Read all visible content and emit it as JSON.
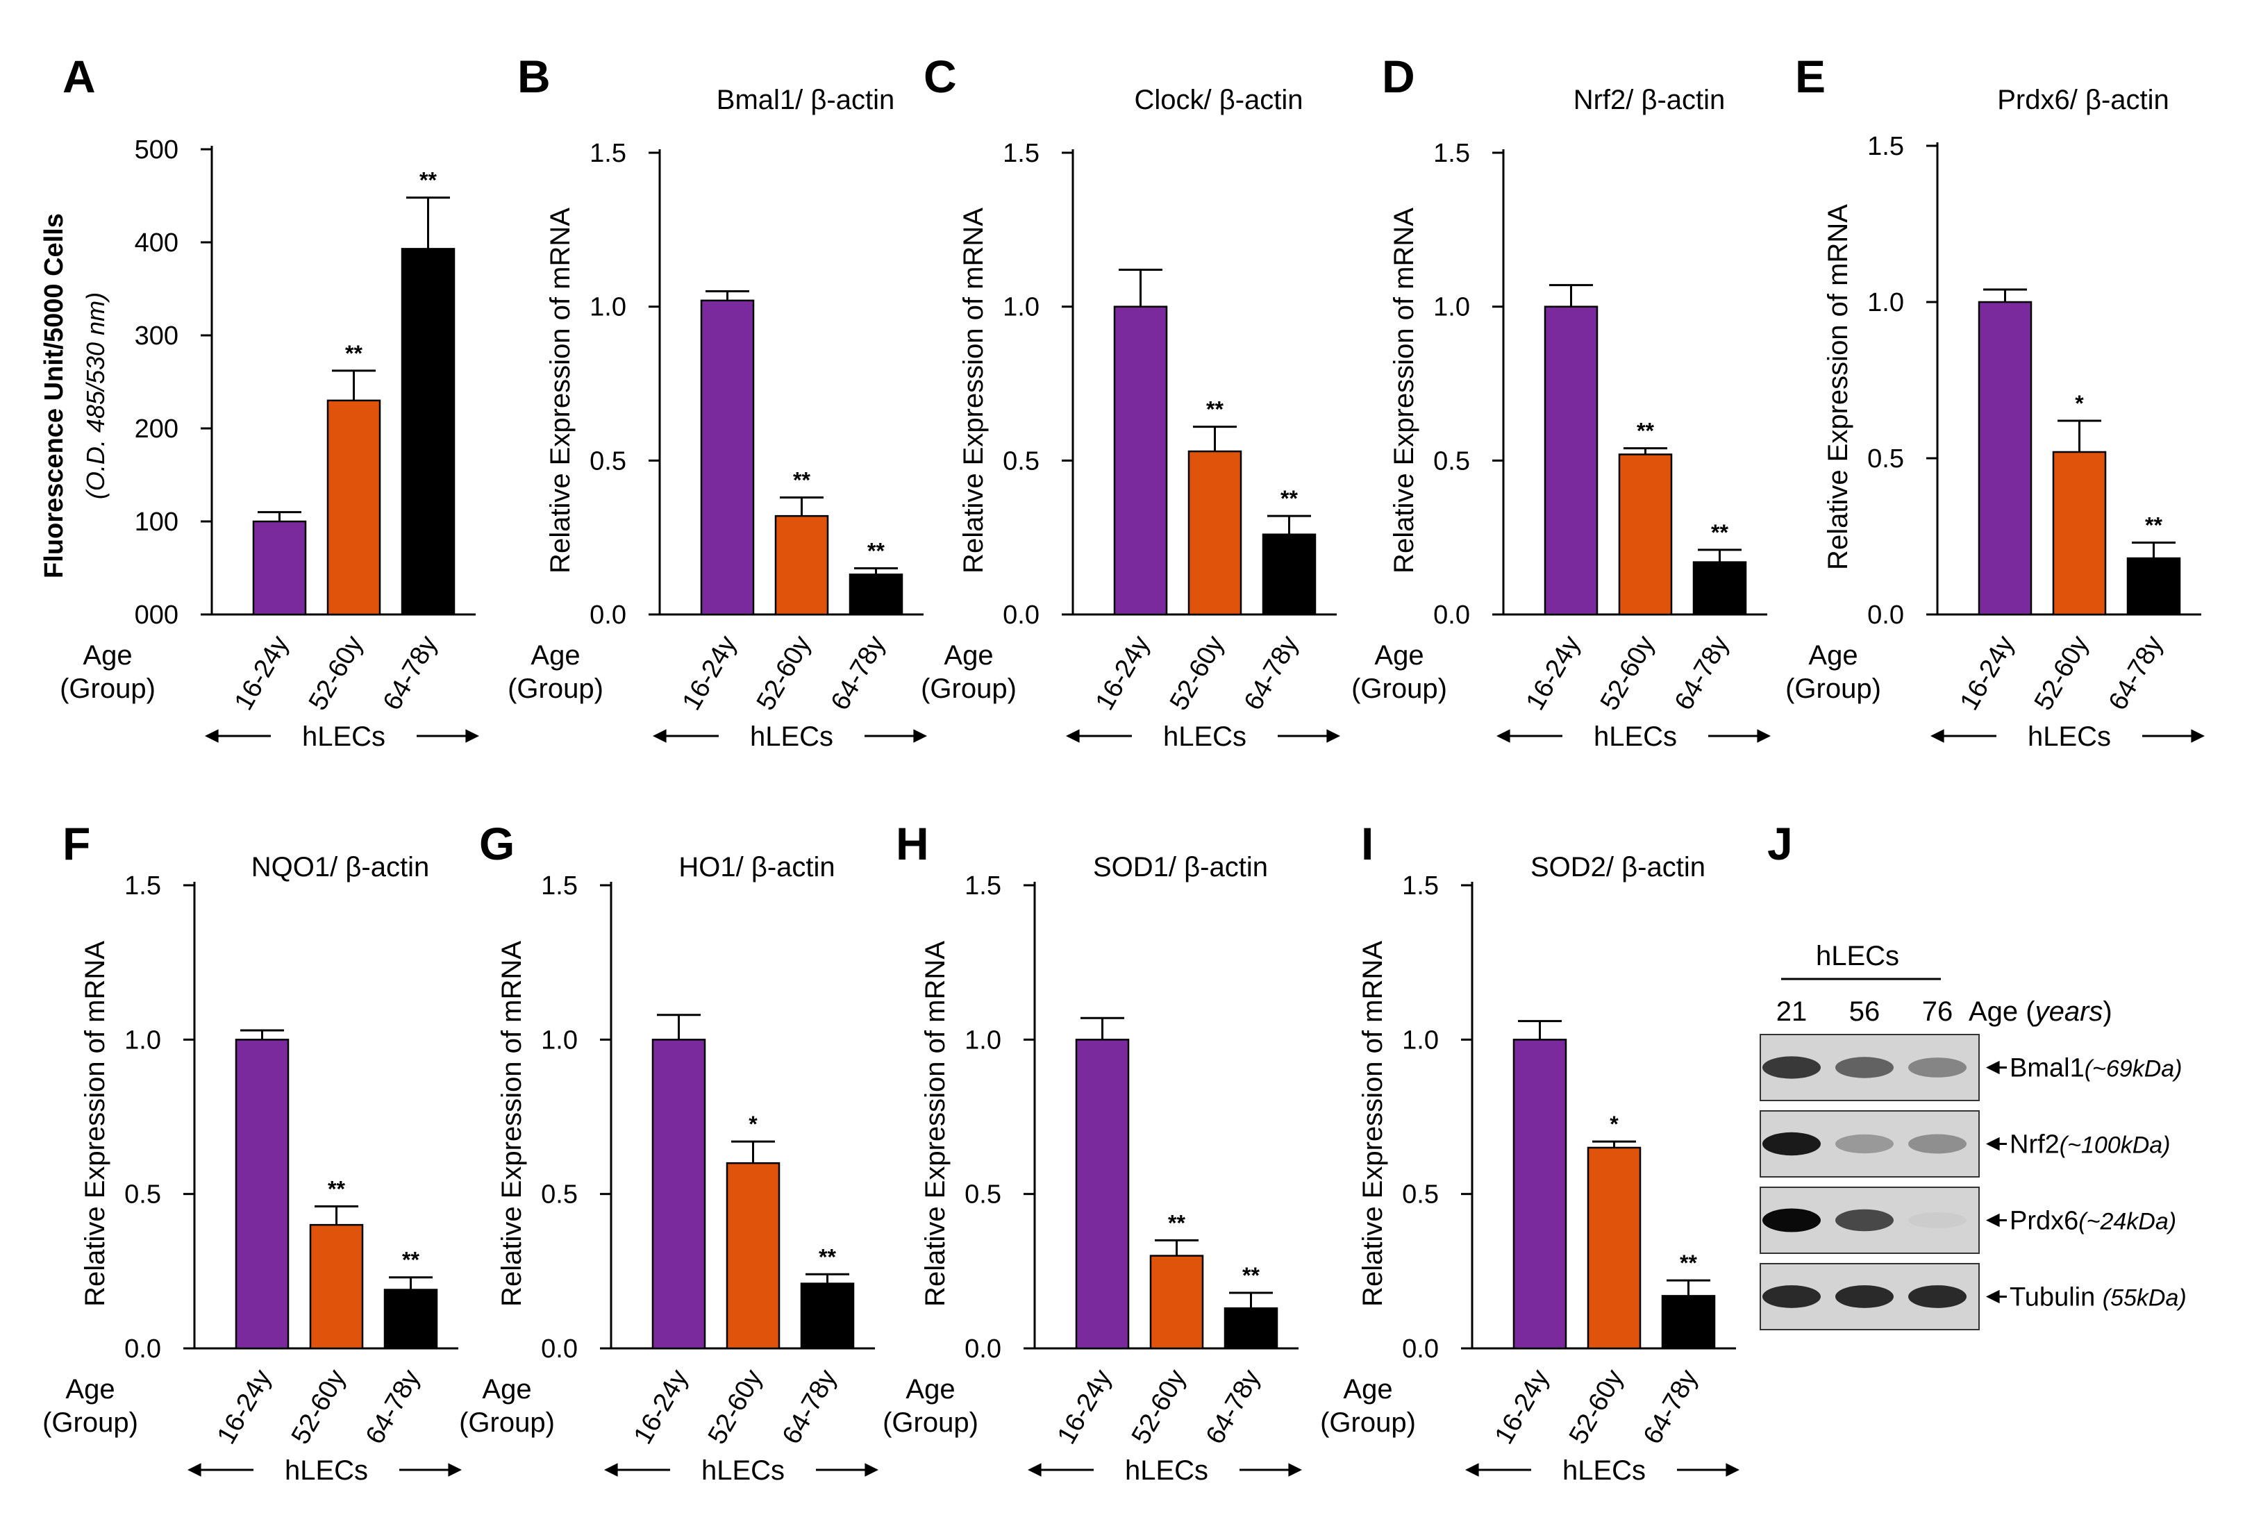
{
  "colors": {
    "purple": "#7a2a9c",
    "orange": "#e0530b",
    "black": "#000000",
    "axis": "#000000"
  },
  "shared": {
    "age_label": "Age",
    "group_label": "(Group)",
    "cell_label": "hLECs",
    "ylabel_mrna": "Relative Expression of mRNA"
  },
  "chart_data": [
    {
      "panel": "A",
      "type": "bar",
      "title": "",
      "ylabel": "Fluorescence Unit/5000 Cells",
      "ylabel2": "(O.D. 485/530 nm)",
      "categories": [
        "16-24y",
        "52-60y",
        "64-78y"
      ],
      "values": [
        100,
        230,
        393
      ],
      "errors": [
        10,
        32,
        55
      ],
      "significance": [
        "",
        "**",
        "**"
      ],
      "ylim": [
        0,
        500
      ],
      "ticks": [
        0,
        100,
        200,
        300,
        400,
        500
      ],
      "tick_labels": [
        "000",
        "100",
        "200",
        "300",
        "400",
        "500"
      ]
    },
    {
      "panel": "B",
      "type": "bar",
      "title": "Bmal1/ β-actin",
      "categories": [
        "16-24y",
        "52-60y",
        "64-78y"
      ],
      "values": [
        1.02,
        0.32,
        0.13
      ],
      "errors": [
        0.03,
        0.06,
        0.02
      ],
      "significance": [
        "",
        "**",
        "**"
      ],
      "ylim": [
        0,
        1.5
      ],
      "ticks": [
        0,
        0.5,
        1.0,
        1.5
      ],
      "tick_labels": [
        "0.0",
        "0.5",
        "1.0",
        "1.5"
      ]
    },
    {
      "panel": "C",
      "type": "bar",
      "title": "Clock/ β-actin",
      "categories": [
        "16-24y",
        "52-60y",
        "64-78y"
      ],
      "values": [
        1.0,
        0.53,
        0.26
      ],
      "errors": [
        0.12,
        0.08,
        0.06
      ],
      "significance": [
        "",
        "**",
        "**"
      ],
      "ylim": [
        0,
        1.5
      ],
      "ticks": [
        0,
        0.5,
        1.0,
        1.5
      ],
      "tick_labels": [
        "0.0",
        "0.5",
        "1.0",
        "1.5"
      ]
    },
    {
      "panel": "D",
      "type": "bar",
      "title": "Nrf2/ β-actin",
      "categories": [
        "16-24y",
        "52-60y",
        "64-78y"
      ],
      "values": [
        1.0,
        0.52,
        0.17
      ],
      "errors": [
        0.07,
        0.02,
        0.04
      ],
      "significance": [
        "",
        "**",
        "**"
      ],
      "ylim": [
        0,
        1.5
      ],
      "ticks": [
        0,
        0.5,
        1.0,
        1.5
      ],
      "tick_labels": [
        "0.0",
        "0.5",
        "1.0",
        "1.5"
      ]
    },
    {
      "panel": "E",
      "type": "bar",
      "title": "Prdx6/ β-actin",
      "categories": [
        "16-24y",
        "52-60y",
        "64-78y"
      ],
      "values": [
        1.0,
        0.52,
        0.18
      ],
      "errors": [
        0.04,
        0.1,
        0.05
      ],
      "significance": [
        "",
        "*",
        "**"
      ],
      "ylim": [
        0,
        1.5
      ],
      "ticks": [
        0,
        0.5,
        1.0,
        1.5
      ],
      "tick_labels": [
        "0.0",
        "0.5",
        "1.0",
        "1.5"
      ]
    },
    {
      "panel": "F",
      "type": "bar",
      "title": "NQO1/ β-actin",
      "categories": [
        "16-24y",
        "52-60y",
        "64-78y"
      ],
      "values": [
        1.0,
        0.4,
        0.19
      ],
      "errors": [
        0.03,
        0.06,
        0.04
      ],
      "significance": [
        "",
        "**",
        "**"
      ],
      "ylim": [
        0,
        1.5
      ],
      "ticks": [
        0,
        0.5,
        1.0,
        1.5
      ],
      "tick_labels": [
        "0.0",
        "0.5",
        "1.0",
        "1.5"
      ]
    },
    {
      "panel": "G",
      "type": "bar",
      "title": "HO1/ β-actin",
      "categories": [
        "16-24y",
        "52-60y",
        "64-78y"
      ],
      "values": [
        1.0,
        0.6,
        0.21
      ],
      "errors": [
        0.08,
        0.07,
        0.03
      ],
      "significance": [
        "",
        "*",
        "**"
      ],
      "ylim": [
        0,
        1.5
      ],
      "ticks": [
        0,
        0.5,
        1.0,
        1.5
      ],
      "tick_labels": [
        "0.0",
        "0.5",
        "1.0",
        "1.5"
      ]
    },
    {
      "panel": "H",
      "type": "bar",
      "title": "SOD1/ β-actin",
      "categories": [
        "16-24y",
        "52-60y",
        "64-78y"
      ],
      "values": [
        1.0,
        0.3,
        0.13
      ],
      "errors": [
        0.07,
        0.05,
        0.05
      ],
      "significance": [
        "",
        "**",
        "**"
      ],
      "ylim": [
        0,
        1.5
      ],
      "ticks": [
        0,
        0.5,
        1.0,
        1.5
      ],
      "tick_labels": [
        "0.0",
        "0.5",
        "1.0",
        "1.5"
      ]
    },
    {
      "panel": "I",
      "type": "bar",
      "title": "SOD2/ β-actin",
      "categories": [
        "16-24y",
        "52-60y",
        "64-78y"
      ],
      "values": [
        1.0,
        0.65,
        0.17
      ],
      "errors": [
        0.06,
        0.02,
        0.05
      ],
      "significance": [
        "",
        "*",
        "**"
      ],
      "ylim": [
        0,
        1.5
      ],
      "ticks": [
        0,
        0.5,
        1.0,
        1.5
      ],
      "tick_labels": [
        "0.0",
        "0.5",
        "1.0",
        "1.5"
      ]
    }
  ],
  "blot": {
    "panel": "J",
    "header": "hLECs",
    "ages": [
      "21",
      "56",
      "76"
    ],
    "age_label": "Age (",
    "age_unit": "years",
    "age_close": ")",
    "rows": [
      {
        "name": "Bmal1",
        "size": "(~69kDa)",
        "intensity": [
          0.85,
          0.7,
          0.55
        ]
      },
      {
        "name": "Nrf2",
        "size": "(~100kDa)",
        "intensity": [
          0.95,
          0.45,
          0.5
        ]
      },
      {
        "name": "Prdx6",
        "size": "(~24kDa)",
        "intensity": [
          1.0,
          0.8,
          0.08
        ]
      },
      {
        "name": "Tubulin ",
        "size": "(55kDa)",
        "intensity": [
          0.9,
          0.9,
          0.9
        ]
      }
    ]
  }
}
